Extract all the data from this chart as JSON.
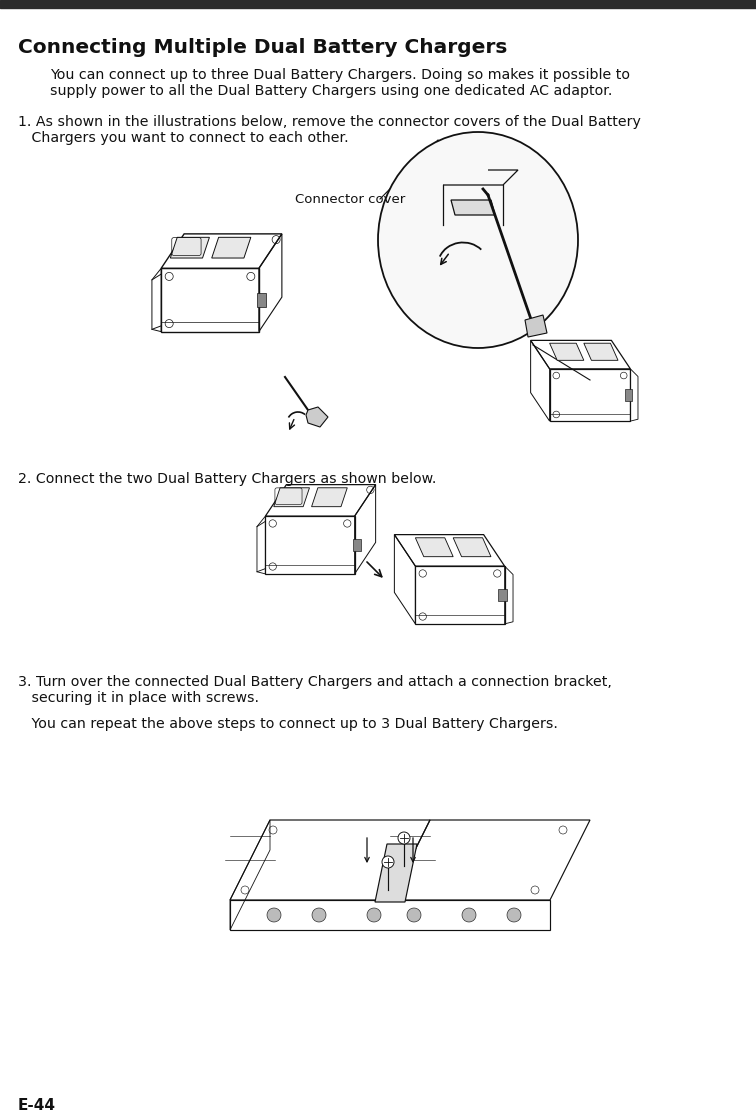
{
  "bg_color": "#ffffff",
  "top_bar_color": "#2b2b2b",
  "title": "Connecting Multiple Dual Battery Chargers",
  "title_fontsize": 14.5,
  "body_fontsize": 10.2,
  "footer_text": "E-44",
  "footer_fontsize": 11,
  "para_intro_line1": "You can connect up to three Dual Battery Chargers. Doing so makes it possible to",
  "para_intro_line2": "supply power to all the Dual Battery Chargers using one dedicated AC adaptor.",
  "step1_line1": "1. As shown in the illustrations below, remove the connector covers of the Dual Battery",
  "step1_line2": "   Chargers you want to connect to each other.",
  "connector_cover_label": "Connector cover",
  "step2_text": "2. Connect the two Dual Battery Chargers as shown below.",
  "step3_line1": "3. Turn over the connected Dual Battery Chargers and attach a connection bracket,",
  "step3_line2": "   securing it in place with screws.",
  "step3b_text": "   You can repeat the above steps to connect up to 3 Dual Battery Chargers.",
  "line_color": "#111111"
}
